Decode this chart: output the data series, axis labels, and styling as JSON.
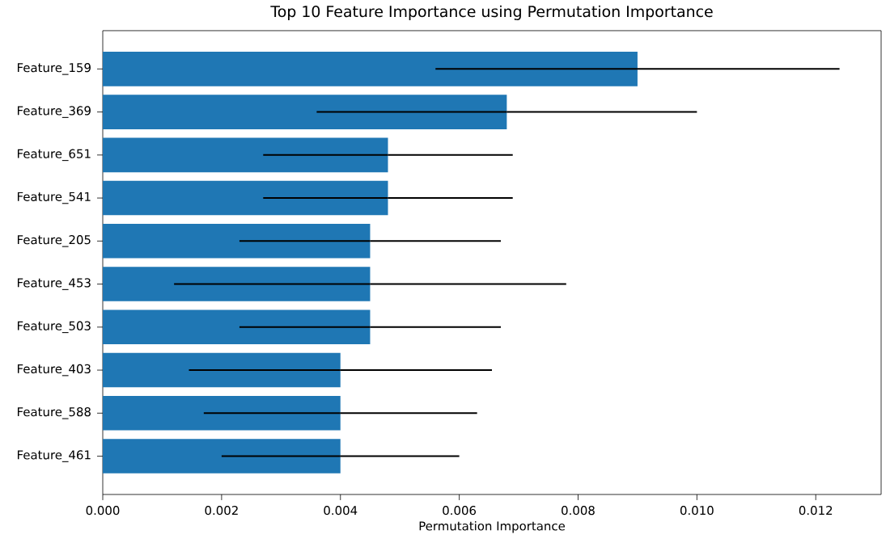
{
  "chart_data": {
    "type": "bar",
    "orientation": "horizontal",
    "title": "Top 10 Feature Importance using Permutation Importance",
    "xlabel": "Permutation Importance",
    "categories": [
      "Feature_159",
      "Feature_369",
      "Feature_651",
      "Feature_541",
      "Feature_205",
      "Feature_453",
      "Feature_503",
      "Feature_403",
      "Feature_588",
      "Feature_461"
    ],
    "values": [
      0.009,
      0.0068,
      0.0048,
      0.0048,
      0.0045,
      0.0045,
      0.0045,
      0.004,
      0.004,
      0.004
    ],
    "errors": [
      0.0034,
      0.0032,
      0.0021,
      0.0021,
      0.0022,
      0.0033,
      0.0022,
      0.00255,
      0.0023,
      0.002
    ],
    "color": "#1f77b4",
    "xlim": [
      0,
      0.0131
    ],
    "xticks": [
      {
        "value": 0,
        "label": "0.000"
      },
      {
        "value": 0.002,
        "label": "0.002"
      },
      {
        "value": 0.004,
        "label": "0.004"
      },
      {
        "value": 0.006,
        "label": "0.006"
      },
      {
        "value": 0.008,
        "label": "0.008"
      },
      {
        "value": 0.01,
        "label": "0.010"
      },
      {
        "value": 0.012,
        "label": "0.012"
      }
    ],
    "grid": false
  }
}
